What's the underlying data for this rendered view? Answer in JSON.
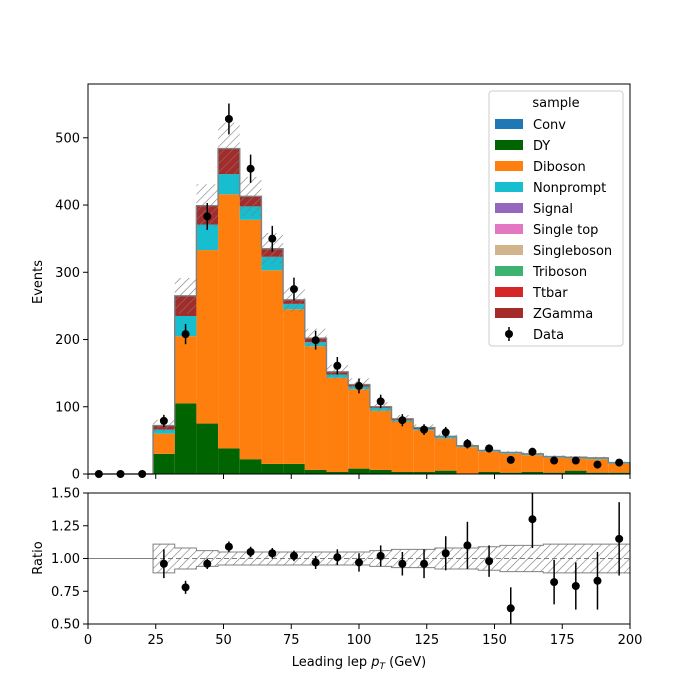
{
  "chart_data": [
    {
      "type": "bar",
      "stacked": true,
      "bin_edges": [
        0,
        8,
        16,
        24,
        32,
        40,
        48,
        56,
        64,
        72,
        80,
        88,
        96,
        104,
        112,
        120,
        128,
        136,
        144,
        152,
        160,
        168,
        176,
        184,
        192,
        200
      ],
      "ylabel": "Events",
      "xlim": [
        0,
        200
      ],
      "ylim": [
        0,
        580
      ],
      "y_ticks": [
        0,
        100,
        200,
        300,
        400,
        500
      ],
      "legend_title": "sample",
      "legend_position": "top-right",
      "series": [
        {
          "name": "Conv",
          "color": "#1f77b4",
          "values": [
            0,
            0,
            0,
            0,
            0,
            0,
            0,
            0,
            0,
            0,
            0,
            0,
            0,
            0,
            0,
            0,
            0,
            0,
            0,
            0,
            0,
            0,
            0,
            0,
            0
          ]
        },
        {
          "name": "DY",
          "color": "#006400",
          "values": [
            0,
            0,
            0,
            30,
            105,
            75,
            38,
            22,
            15,
            15,
            6,
            3,
            8,
            6,
            3,
            3,
            5,
            0,
            3,
            2,
            3,
            2,
            5,
            2,
            2
          ]
        },
        {
          "name": "Diboson",
          "color": "#ff7f0e",
          "values": [
            0,
            0,
            0,
            30,
            100,
            258,
            378,
            356,
            288,
            230,
            184,
            140,
            118,
            88,
            75,
            62,
            48,
            40,
            30,
            28,
            25,
            22,
            18,
            20,
            13
          ]
        },
        {
          "name": "Nonprompt",
          "color": "#17becf",
          "values": [
            0,
            0,
            0,
            6,
            30,
            38,
            30,
            20,
            20,
            8,
            6,
            5,
            4,
            4,
            2,
            2,
            2,
            1,
            1,
            1,
            1,
            1,
            1,
            1,
            1
          ]
        },
        {
          "name": "Signal",
          "color": "#9467bd",
          "values": [
            0,
            0,
            0,
            0,
            0,
            0,
            0,
            0,
            0,
            0,
            0,
            0,
            0,
            0,
            0,
            0,
            0,
            0,
            0,
            0,
            0,
            0,
            0,
            0,
            0
          ]
        },
        {
          "name": "Single top",
          "color": "#e377c2",
          "values": [
            0,
            0,
            0,
            0,
            0,
            0,
            0,
            0,
            0,
            0,
            0,
            0,
            0,
            0,
            0,
            0,
            0,
            0,
            0,
            0,
            0,
            0,
            0,
            0,
            0
          ]
        },
        {
          "name": "Singleboson",
          "color": "#d2b48c",
          "values": [
            0,
            0,
            0,
            0,
            0,
            0,
            0,
            0,
            0,
            0,
            0,
            0,
            0,
            0,
            0,
            0,
            0,
            0,
            0,
            0,
            0,
            0,
            0,
            0,
            0
          ]
        },
        {
          "name": "Triboson",
          "color": "#3cb371",
          "values": [
            0,
            0,
            0,
            0,
            0,
            0,
            0,
            0,
            0,
            0,
            0,
            0,
            0,
            0,
            0,
            0,
            0,
            0,
            0,
            0,
            0,
            0,
            0,
            0,
            0
          ]
        },
        {
          "name": "Ttbar",
          "color": "#d62728",
          "values": [
            0,
            0,
            0,
            0,
            0,
            0,
            0,
            0,
            0,
            0,
            0,
            0,
            0,
            0,
            0,
            0,
            0,
            0,
            0,
            0,
            0,
            0,
            0,
            0,
            0
          ]
        },
        {
          "name": "ZGamma",
          "color": "#a52a2a",
          "values": [
            0,
            0,
            0,
            6,
            30,
            28,
            38,
            15,
            12,
            6,
            6,
            4,
            3,
            2,
            2,
            2,
            1,
            1,
            1,
            1,
            1,
            1,
            1,
            1,
            1
          ]
        }
      ],
      "uncertainty": {
        "color": "#808080",
        "fractional_width": [
          0.1,
          0.1,
          0.1,
          0.12,
          0.1,
          0.08,
          0.08,
          0.07,
          0.07,
          0.07,
          0.07,
          0.07,
          0.07,
          0.07,
          0.07,
          0.07,
          0.07,
          0.07,
          0.07,
          0.07,
          0.07,
          0.07,
          0.07,
          0.07,
          0.07
        ]
      },
      "data_points": {
        "name": "Data",
        "color": "#000000",
        "x": [
          4,
          12,
          20,
          28,
          36,
          44,
          52,
          60,
          68,
          76,
          84,
          92,
          100,
          108,
          116,
          124,
          132,
          140,
          148,
          156,
          164,
          172,
          180,
          188,
          196
        ],
        "y": [
          0,
          0,
          0,
          79,
          208,
          383,
          528,
          454,
          350,
          275,
          199,
          161,
          131,
          108,
          80,
          66,
          62,
          45,
          38,
          21,
          33,
          20,
          20,
          14,
          17
        ],
        "yerr": [
          0,
          0,
          0,
          9,
          15,
          20,
          23,
          21,
          19,
          17,
          14,
          13,
          11,
          10,
          9,
          8,
          8,
          7,
          6,
          5,
          6,
          4,
          4,
          4,
          4
        ]
      }
    },
    {
      "type": "scatter",
      "xlabel": "Leading lep p_T (GeV)",
      "ylabel": "Ratio",
      "xlim": [
        0,
        200
      ],
      "ylim": [
        0.5,
        1.5
      ],
      "x_ticks": [
        0,
        25,
        50,
        75,
        100,
        125,
        150,
        175,
        200
      ],
      "y_ticks": [
        0.5,
        0.75,
        1.0,
        1.25,
        1.5
      ],
      "reference_line": 1.0,
      "band_bin_edges": [
        0,
        8,
        16,
        24,
        32,
        40,
        48,
        56,
        64,
        72,
        80,
        88,
        96,
        104,
        112,
        120,
        128,
        136,
        144,
        152,
        160,
        168,
        176,
        184,
        192,
        200
      ],
      "band_half_width": [
        0,
        0,
        0,
        0.11,
        0.08,
        0.06,
        0.05,
        0.05,
        0.05,
        0.05,
        0.05,
        0.05,
        0.05,
        0.06,
        0.07,
        0.07,
        0.08,
        0.08,
        0.09,
        0.1,
        0.1,
        0.11,
        0.11,
        0.11,
        0.11
      ],
      "points": {
        "x": [
          28,
          36,
          44,
          52,
          60,
          68,
          76,
          84,
          92,
          100,
          108,
          116,
          124,
          132,
          140,
          148,
          156,
          164,
          172,
          180,
          188,
          196
        ],
        "y": [
          0.96,
          0.78,
          0.96,
          1.09,
          1.05,
          1.04,
          1.02,
          0.97,
          1.01,
          0.97,
          1.02,
          0.96,
          0.96,
          1.04,
          1.1,
          0.98,
          0.62,
          1.3,
          0.82,
          0.79,
          0.83,
          1.15
        ],
        "yerr": [
          0.11,
          0.05,
          0.04,
          0.04,
          0.04,
          0.04,
          0.04,
          0.05,
          0.06,
          0.07,
          0.08,
          0.09,
          0.11,
          0.13,
          0.18,
          0.12,
          0.16,
          0.22,
          0.17,
          0.18,
          0.22,
          0.28
        ]
      }
    }
  ]
}
